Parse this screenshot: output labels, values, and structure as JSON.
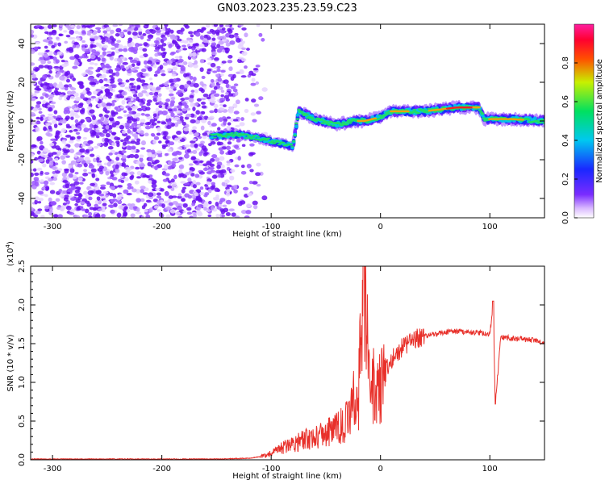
{
  "title": "GN03.2023.235.23.59.C23",
  "colors": {
    "snr_line": "#e8302a",
    "axis": "#000000"
  },
  "chart_data": [
    {
      "type": "heatmap",
      "name": "spectrogram",
      "xlabel": "Height of straight line (km)",
      "ylabel": "Frequency (Hz)",
      "xlim": [
        -320,
        150
      ],
      "ylim": [
        -50,
        50
      ],
      "xticks": [
        -300,
        -200,
        -100,
        0,
        100
      ],
      "xtick_labels": [
        "-300",
        "-200",
        "-100",
        "0",
        "100"
      ],
      "yticks": [
        -40,
        -20,
        0,
        20,
        40
      ],
      "ytick_labels": [
        "-40",
        "-20",
        "0",
        "20",
        "40"
      ],
      "colorbar": {
        "label": "Normalized spectral amplitude",
        "range": [
          0,
          1
        ],
        "ticks": [
          0.0,
          0.2,
          0.4,
          0.6,
          0.8
        ],
        "tick_labels": [
          "0.0",
          "0.2",
          "0.4",
          "0.6",
          "0.8"
        ],
        "colormap": "rainbow (white-purple-blue-cyan-green-yellow-red-magenta)"
      },
      "noise_region_x": [
        -320,
        -115
      ],
      "signal_track": [
        {
          "x": -155,
          "freq": -8
        },
        {
          "x": -130,
          "freq": -7
        },
        {
          "x": -110,
          "freq": -9
        },
        {
          "x": -95,
          "freq": -11
        },
        {
          "x": -80,
          "freq": -13
        },
        {
          "x": -75,
          "freq": 5
        },
        {
          "x": -60,
          "freq": 1
        },
        {
          "x": -40,
          "freq": -2
        },
        {
          "x": -25,
          "freq": 0
        },
        {
          "x": -15,
          "freq": 0
        },
        {
          "x": 0,
          "freq": 2
        },
        {
          "x": 10,
          "freq": 5
        },
        {
          "x": 40,
          "freq": 5
        },
        {
          "x": 70,
          "freq": 7
        },
        {
          "x": 90,
          "freq": 7
        },
        {
          "x": 95,
          "freq": 1
        },
        {
          "x": 120,
          "freq": 1
        },
        {
          "x": 150,
          "freq": 0
        }
      ]
    },
    {
      "type": "line",
      "name": "snr",
      "xlabel": "Height of straight line (km)",
      "ylabel": "SNR (10 * v/v)",
      "y_multiplier_label": "(x10",
      "y_multiplier_exp": "4",
      "y_multiplier_close": ")",
      "xlim": [
        -320,
        150
      ],
      "ylim": [
        0,
        2.5
      ],
      "xticks": [
        -300,
        -200,
        -100,
        0,
        100
      ],
      "xtick_labels": [
        "-300",
        "-200",
        "-100",
        "0",
        "100"
      ],
      "yticks": [
        0.0,
        0.5,
        1.0,
        1.5,
        2.0,
        2.5
      ],
      "ytick_labels": [
        "0.0",
        "0.5",
        "1.0",
        "1.5",
        "2.0",
        "2.5"
      ],
      "series": [
        {
          "x": [
            -320,
            -250,
            -200,
            -150,
            -120,
            -110,
            -100,
            -90,
            -80,
            -70,
            -60,
            -50,
            -40,
            -30,
            -25,
            -20,
            -15,
            -10,
            -5,
            0,
            5,
            10,
            20,
            30,
            40,
            50,
            60,
            70,
            80,
            90,
            100,
            103,
            105,
            110,
            120,
            130,
            140,
            150
          ],
          "values": [
            0.01,
            0.01,
            0.01,
            0.01,
            0.02,
            0.04,
            0.08,
            0.15,
            0.22,
            0.25,
            0.3,
            0.35,
            0.4,
            0.5,
            0.75,
            0.85,
            2.5,
            0.9,
            0.95,
            1.0,
            1.15,
            1.3,
            1.45,
            1.55,
            1.6,
            1.62,
            1.65,
            1.66,
            1.65,
            1.64,
            1.62,
            2.0,
            0.72,
            1.58,
            1.57,
            1.56,
            1.54,
            1.52
          ]
        }
      ]
    }
  ]
}
